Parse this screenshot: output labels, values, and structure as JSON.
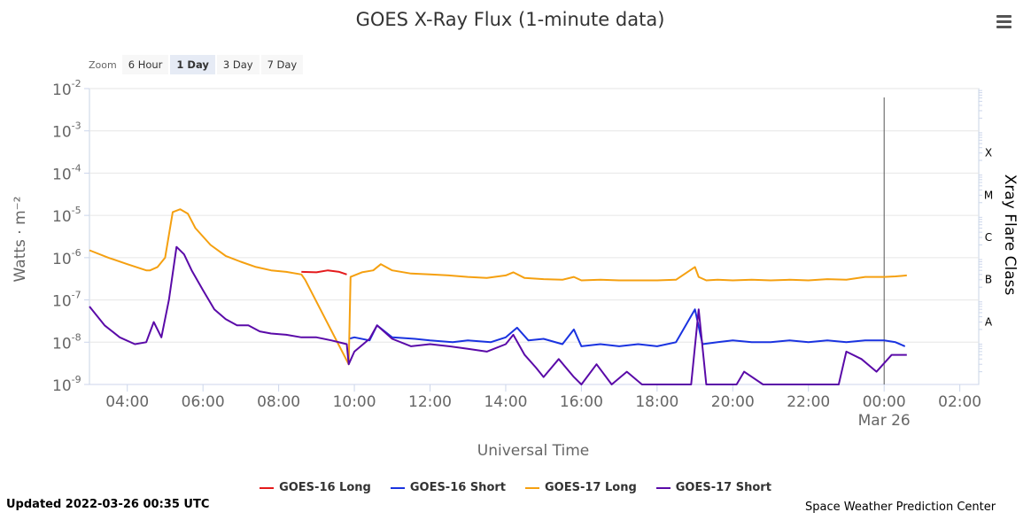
{
  "title": "GOES X-Ray Flux (1-minute data)",
  "zoom": {
    "label": "Zoom",
    "buttons": [
      "6 Hour",
      "1 Day",
      "3 Day",
      "7 Day"
    ],
    "active": "1 Day"
  },
  "updated": "Updated 2022-03-26 00:35 UTC",
  "credit": "Space Weather Prediction Center",
  "chart_data": {
    "type": "line",
    "title": "GOES X-Ray Flux (1-minute data)",
    "xlabel": "Universal Time",
    "ylabel": "Watts · m⁻²",
    "ylabel_right": "Xray Flare Class",
    "yscale": "log",
    "ylim": [
      1e-09,
      0.01
    ],
    "xlim": [
      "03:00",
      "02:30 (+1 day)"
    ],
    "x_unit": "hours UTC (times past 24 are on Mar 26)",
    "x_ticks": [
      "04:00",
      "06:00",
      "08:00",
      "10:00",
      "12:00",
      "14:00",
      "16:00",
      "18:00",
      "20:00",
      "22:00",
      "00:00",
      "02:00"
    ],
    "x_tick_sublabel": "Mar 26",
    "y_ticks": [
      {
        "base": "10",
        "exp": "-9",
        "value": 1e-09
      },
      {
        "base": "10",
        "exp": "-8",
        "value": 1e-08
      },
      {
        "base": "10",
        "exp": "-7",
        "value": 1e-07
      },
      {
        "base": "10",
        "exp": "-6",
        "value": 1e-06
      },
      {
        "base": "10",
        "exp": "-5",
        "value": 1e-05
      },
      {
        "base": "10",
        "exp": "-4",
        "value": 0.0001
      },
      {
        "base": "10",
        "exp": "-3",
        "value": 0.001
      },
      {
        "base": "10",
        "exp": "-2",
        "value": 0.01
      }
    ],
    "flare_classes": [
      {
        "label": "A",
        "value": 1e-08
      },
      {
        "label": "B",
        "value": 1e-07
      },
      {
        "label": "C",
        "value": 1e-06
      },
      {
        "label": "M",
        "value": 1e-05
      },
      {
        "label": "X",
        "value": 0.0001
      }
    ],
    "current_time_marker": 24.0,
    "grid": true,
    "legend_position": "bottom",
    "series": [
      {
        "name": "GOES-16 Long",
        "color": "#e41a1c",
        "x": [
          8.6,
          9.0,
          9.3,
          9.6,
          9.8
        ],
        "y": [
          4.6e-07,
          4.5e-07,
          5e-07,
          4.6e-07,
          4e-07
        ]
      },
      {
        "name": "GOES-16 Short",
        "color": "#1a33e0",
        "x": [
          9.85,
          10.0,
          10.4,
          10.6,
          11.0,
          11.6,
          12.0,
          12.6,
          13.0,
          13.6,
          14.0,
          14.3,
          14.6,
          15.0,
          15.5,
          15.8,
          16.0,
          16.5,
          17.0,
          17.5,
          18.0,
          18.5,
          19.0,
          19.2,
          19.6,
          20.0,
          20.5,
          21.0,
          21.5,
          22.0,
          22.5,
          23.0,
          23.5,
          24.0,
          24.3,
          24.55
        ],
        "y": [
          1.2e-08,
          1.3e-08,
          1.1e-08,
          2.5e-08,
          1.3e-08,
          1.2e-08,
          1.1e-08,
          1e-08,
          1.1e-08,
          1e-08,
          1.3e-08,
          2.2e-08,
          1.1e-08,
          1.2e-08,
          9e-09,
          2e-08,
          8e-09,
          9e-09,
          8e-09,
          9e-09,
          8e-09,
          1e-08,
          6e-08,
          9e-09,
          1e-08,
          1.1e-08,
          1e-08,
          1e-08,
          1.1e-08,
          1e-08,
          1.1e-08,
          1e-08,
          1.1e-08,
          1.1e-08,
          1e-08,
          8e-09
        ]
      },
      {
        "name": "GOES-17 Long",
        "color": "#f5a010",
        "x": [
          3.0,
          3.5,
          4.0,
          4.5,
          4.6,
          4.8,
          5.0,
          5.2,
          5.4,
          5.6,
          5.8,
          6.2,
          6.6,
          7.0,
          7.4,
          7.8,
          8.2,
          8.6,
          8.7,
          9.85,
          9.9,
          10.2,
          10.5,
          10.7,
          11.0,
          11.5,
          12.0,
          12.5,
          13.0,
          13.5,
          14.0,
          14.2,
          14.5,
          15.0,
          15.5,
          15.8,
          16.0,
          16.5,
          17.0,
          17.5,
          18.0,
          18.5,
          19.0,
          19.1,
          19.3,
          19.6,
          20.0,
          20.5,
          21.0,
          21.5,
          22.0,
          22.5,
          23.0,
          23.5,
          24.0,
          24.3,
          24.6
        ],
        "y": [
          1.5e-06,
          1e-06,
          7e-07,
          5e-07,
          5e-07,
          6e-07,
          1e-06,
          1.2e-05,
          1.4e-05,
          1.1e-05,
          5e-06,
          2e-06,
          1.1e-06,
          8e-07,
          6e-07,
          5e-07,
          4.6e-07,
          4e-07,
          3e-07,
          3e-09,
          3.5e-07,
          4.5e-07,
          5e-07,
          7e-07,
          5e-07,
          4.2e-07,
          4e-07,
          3.8e-07,
          3.5e-07,
          3.3e-07,
          3.8e-07,
          4.5e-07,
          3.3e-07,
          3.1e-07,
          3e-07,
          3.5e-07,
          2.9e-07,
          3e-07,
          2.9e-07,
          2.9e-07,
          2.9e-07,
          3e-07,
          6e-07,
          3.5e-07,
          2.9e-07,
          3e-07,
          2.9e-07,
          3e-07,
          2.9e-07,
          3e-07,
          2.9e-07,
          3.1e-07,
          3e-07,
          3.5e-07,
          3.5e-07,
          3.6e-07,
          3.8e-07
        ]
      },
      {
        "name": "GOES-17 Short",
        "color": "#5a0aa8",
        "x": [
          3.0,
          3.4,
          3.8,
          4.2,
          4.5,
          4.7,
          4.9,
          5.1,
          5.3,
          5.5,
          5.7,
          6.0,
          6.3,
          6.6,
          6.9,
          7.2,
          7.5,
          7.8,
          8.2,
          8.6,
          9.0,
          9.4,
          9.8,
          9.85,
          10.0,
          10.4,
          10.6,
          11.0,
          11.5,
          12.0,
          12.5,
          13.0,
          13.5,
          14.0,
          14.2,
          14.5,
          14.8,
          15.0,
          15.4,
          15.8,
          16.0,
          16.4,
          16.8,
          17.2,
          17.6,
          18.0,
          18.5,
          18.9,
          19.1,
          19.3,
          19.7,
          20.1,
          20.3,
          20.8,
          21.2,
          21.8,
          22.4,
          22.8,
          23.0,
          23.4,
          23.8,
          24.2,
          24.6
        ],
        "y": [
          7e-08,
          2.5e-08,
          1.3e-08,
          9e-09,
          1e-08,
          3e-08,
          1.3e-08,
          1e-07,
          1.8e-06,
          1.2e-06,
          5e-07,
          1.7e-07,
          6e-08,
          3.5e-08,
          2.5e-08,
          2.5e-08,
          1.8e-08,
          1.6e-08,
          1.5e-08,
          1.3e-08,
          1.3e-08,
          1.1e-08,
          9e-09,
          3e-09,
          6e-09,
          1.2e-08,
          2.5e-08,
          1.2e-08,
          8e-09,
          9e-09,
          8e-09,
          7e-09,
          6e-09,
          9e-09,
          1.5e-08,
          5e-09,
          2.5e-09,
          1.5e-09,
          4e-09,
          1.5e-09,
          1e-09,
          3e-09,
          1e-09,
          2e-09,
          1e-09,
          1e-09,
          1e-09,
          1e-09,
          6e-08,
          1e-09,
          1e-09,
          1e-09,
          2e-09,
          1e-09,
          1e-09,
          1e-09,
          1e-09,
          1e-09,
          6e-09,
          4e-09,
          2e-09,
          5e-09,
          5e-09
        ]
      }
    ]
  }
}
